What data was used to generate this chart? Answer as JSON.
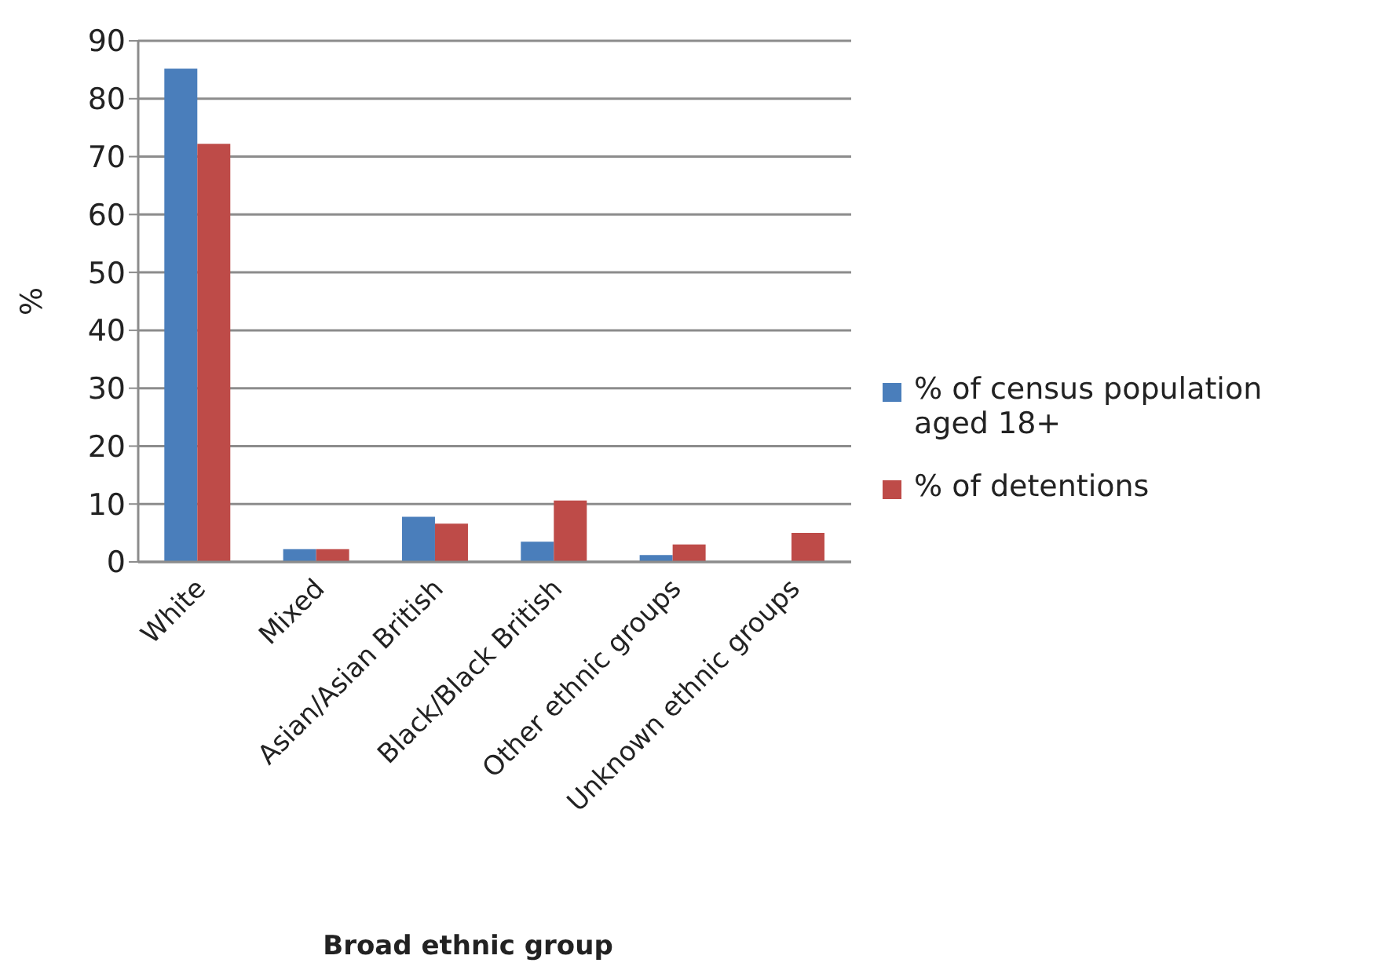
{
  "chart_data": {
    "type": "bar",
    "xlabel": "Broad ethnic group",
    "ylabel": "%",
    "categories": [
      "White",
      "Mixed",
      "Asian/Asian British",
      "Black/Black British",
      "Other ethnic groups",
      "Unknown ethnic groups"
    ],
    "series": [
      {
        "name": "% of census population aged 18+",
        "color": "#4a7ebb",
        "values": [
          85.2,
          2.2,
          7.8,
          3.5,
          1.2,
          0
        ]
      },
      {
        "name": "% of detentions",
        "color": "#be4b48",
        "values": [
          72.2,
          2.2,
          6.6,
          10.6,
          3,
          5
        ]
      }
    ],
    "ylim": [
      0,
      90
    ],
    "yticks": [
      0,
      10,
      20,
      30,
      40,
      50,
      60,
      70,
      80,
      90
    ],
    "grid": "y",
    "legend": "right"
  }
}
